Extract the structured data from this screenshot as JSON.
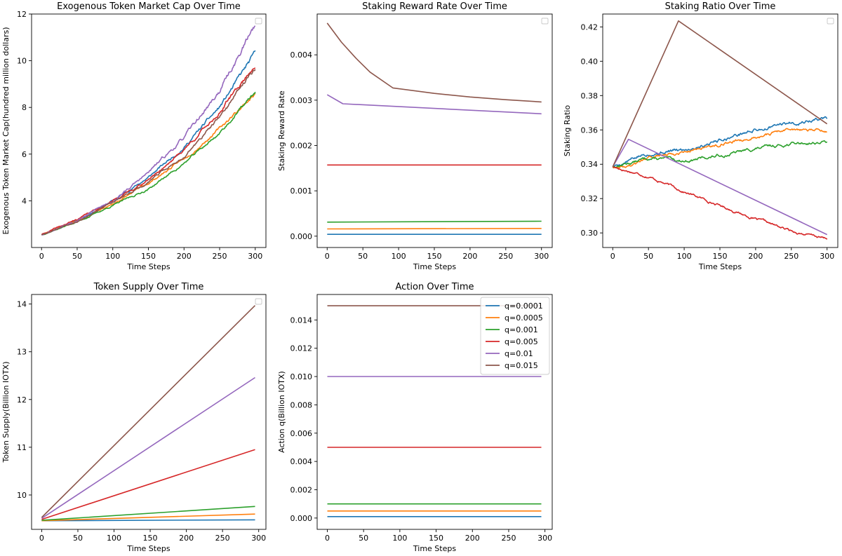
{
  "colors": {
    "q=0.0001": "#1f77b4",
    "q=0.0005": "#ff7f0e",
    "q=0.001": "#2ca02c",
    "q=0.005": "#d62728",
    "q=0.01": "#9467bd",
    "q=0.015": "#8c564b"
  },
  "legend_labels": [
    "q=0.0001",
    "q=0.0005",
    "q=0.001",
    "q=0.005",
    "q=0.01",
    "q=0.015"
  ],
  "chart_data": [
    {
      "id": "market-cap",
      "type": "line",
      "title": "Exogenous Token Market Cap Over Time",
      "xlabel": "Time Steps",
      "ylabel": "Exogenous Token Market Cap(hundred million dollars)",
      "xlim": [
        -14,
        315
      ],
      "ylim": [
        2.0,
        12.0
      ],
      "xticks": [
        0,
        50,
        100,
        150,
        200,
        250,
        300
      ],
      "yticks": [
        4,
        6,
        8,
        10,
        12
      ],
      "legend": "empty-top-right",
      "series": [
        {
          "name": "q=0.0001",
          "noise": 0.035,
          "seed": 11,
          "x": [
            0,
            50,
            100,
            150,
            200,
            250,
            300
          ],
          "y": [
            2.55,
            3.15,
            4.0,
            5.0,
            6.3,
            8.0,
            10.3
          ]
        },
        {
          "name": "q=0.0005",
          "noise": 0.03,
          "seed": 23,
          "x": [
            0,
            50,
            100,
            150,
            200,
            250,
            300
          ],
          "y": [
            2.55,
            3.15,
            3.85,
            4.75,
            5.8,
            7.1,
            8.6
          ]
        },
        {
          "name": "q=0.001",
          "noise": 0.03,
          "seed": 37,
          "x": [
            0,
            50,
            100,
            150,
            200,
            250,
            300
          ],
          "y": [
            2.55,
            3.1,
            3.8,
            4.5,
            5.6,
            6.9,
            8.65
          ]
        },
        {
          "name": "q=0.005",
          "noise": 0.035,
          "seed": 41,
          "x": [
            0,
            50,
            100,
            150,
            200,
            250,
            300
          ],
          "y": [
            2.55,
            3.2,
            4.0,
            4.9,
            6.2,
            7.8,
            9.85
          ]
        },
        {
          "name": "q=0.01",
          "noise": 0.04,
          "seed": 53,
          "x": [
            0,
            50,
            100,
            150,
            200,
            250,
            300
          ],
          "y": [
            2.55,
            3.2,
            4.0,
            5.2,
            6.7,
            8.7,
            11.55
          ]
        },
        {
          "name": "q=0.015",
          "noise": 0.035,
          "seed": 67,
          "x": [
            0,
            50,
            100,
            150,
            200,
            250,
            300
          ],
          "y": [
            2.55,
            3.15,
            3.9,
            4.8,
            5.9,
            7.55,
            9.75
          ]
        }
      ]
    },
    {
      "id": "reward-rate",
      "type": "line",
      "title": "Staking Reward Rate Over Time",
      "xlabel": "Time Steps",
      "ylabel": "Staking Reward Rate",
      "xlim": [
        -14,
        315
      ],
      "ylim": [
        -0.00025,
        0.0049
      ],
      "xticks": [
        0,
        50,
        100,
        150,
        200,
        250,
        300
      ],
      "yticks": [
        0.0,
        0.001,
        0.002,
        0.003,
        0.004
      ],
      "ytick_labels": [
        "0.000",
        "0.001",
        "0.002",
        "0.003",
        "0.004"
      ],
      "legend": "empty-top-right",
      "series": [
        {
          "name": "q=0.0001",
          "x": [
            0,
            300
          ],
          "y": [
            4e-05,
            4e-05
          ]
        },
        {
          "name": "q=0.0005",
          "x": [
            0,
            300
          ],
          "y": [
            0.00016,
            0.00017
          ]
        },
        {
          "name": "q=0.001",
          "x": [
            0,
            300
          ],
          "y": [
            0.00031,
            0.00033
          ]
        },
        {
          "name": "q=0.005",
          "x": [
            0,
            100,
            200,
            300
          ],
          "y": [
            0.00157,
            0.00157,
            0.00157,
            0.00157
          ]
        },
        {
          "name": "q=0.01",
          "x": [
            0,
            22,
            300
          ],
          "y": [
            0.00312,
            0.00292,
            0.0027
          ]
        },
        {
          "name": "q=0.015",
          "x": [
            0,
            20,
            40,
            60,
            92,
            150,
            200,
            250,
            300
          ],
          "y": [
            0.0047,
            0.00428,
            0.00393,
            0.00362,
            0.00327,
            0.00315,
            0.00307,
            0.00301,
            0.00296
          ]
        }
      ]
    },
    {
      "id": "staking-ratio",
      "type": "line",
      "title": "Staking Ratio Over Time",
      "xlabel": "Time Steps",
      "ylabel": "Staking Ratio",
      "xlim": [
        -14,
        315
      ],
      "ylim": [
        0.2915,
        0.4275
      ],
      "xticks": [
        0,
        50,
        100,
        150,
        200,
        250,
        300
      ],
      "yticks": [
        0.3,
        0.32,
        0.34,
        0.36,
        0.38,
        0.4,
        0.42
      ],
      "ytick_labels": [
        "0.30",
        "0.32",
        "0.34",
        "0.36",
        "0.38",
        "0.40",
        "0.42"
      ],
      "legend": "empty-top-right",
      "series": [
        {
          "name": "q=0.0001",
          "noise": 0.0006,
          "seed": 5,
          "x": [
            0,
            50,
            100,
            150,
            200,
            250,
            300
          ],
          "y": [
            0.3385,
            0.3465,
            0.3485,
            0.3545,
            0.36,
            0.364,
            0.367
          ]
        },
        {
          "name": "q=0.0005",
          "noise": 0.0005,
          "seed": 9,
          "x": [
            0,
            25,
            50,
            100,
            150,
            200,
            250,
            300
          ],
          "y": [
            0.3385,
            0.3395,
            0.3435,
            0.3475,
            0.352,
            0.356,
            0.3605,
            0.3595
          ]
        },
        {
          "name": "q=0.001",
          "noise": 0.0005,
          "seed": 13,
          "x": [
            0,
            50,
            100,
            150,
            200,
            250,
            300
          ],
          "y": [
            0.3385,
            0.3435,
            0.342,
            0.345,
            0.349,
            0.352,
            0.353
          ]
        },
        {
          "name": "q=0.005",
          "noise": 0.0004,
          "seed": 17,
          "x": [
            0,
            50,
            100,
            150,
            200,
            250,
            300
          ],
          "y": [
            0.3385,
            0.333,
            0.324,
            0.316,
            0.308,
            0.301,
            0.2965
          ]
        },
        {
          "name": "q=0.01",
          "x": [
            0,
            22,
            300
          ],
          "y": [
            0.3385,
            0.3545,
            0.299
          ]
        },
        {
          "name": "q=0.015",
          "x": [
            0,
            92,
            300
          ],
          "y": [
            0.3385,
            0.4235,
            0.3635
          ]
        }
      ]
    },
    {
      "id": "token-supply",
      "type": "line",
      "title": "Token Supply Over Time",
      "xlabel": "Time Steps",
      "ylabel": "Token Supply(Billion IOTX)",
      "xlim": [
        -14,
        310
      ],
      "ylim": [
        9.28,
        14.2
      ],
      "xticks": [
        0,
        50,
        100,
        150,
        200,
        250,
        300
      ],
      "yticks": [
        10,
        11,
        12,
        13,
        14
      ],
      "legend": "empty-top-right",
      "series": [
        {
          "name": "q=0.0001",
          "x": [
            0,
            295
          ],
          "y": [
            9.46,
            9.48
          ]
        },
        {
          "name": "q=0.0005",
          "x": [
            0,
            295
          ],
          "y": [
            9.46,
            9.6
          ]
        },
        {
          "name": "q=0.001",
          "x": [
            0,
            295
          ],
          "y": [
            9.47,
            9.76
          ]
        },
        {
          "name": "q=0.005",
          "x": [
            0,
            295
          ],
          "y": [
            9.49,
            10.95
          ]
        },
        {
          "name": "q=0.01",
          "x": [
            0,
            295
          ],
          "y": [
            9.51,
            12.46
          ]
        },
        {
          "name": "q=0.015",
          "x": [
            0,
            295
          ],
          "y": [
            9.53,
            13.97
          ]
        }
      ]
    },
    {
      "id": "action",
      "type": "line",
      "title": "Action Over Time",
      "xlabel": "Time Steps",
      "ylabel": "Action q(Billion IOTX)",
      "xlim": [
        -14,
        310
      ],
      "ylim": [
        -0.0008,
        0.0158
      ],
      "xticks": [
        0,
        50,
        100,
        150,
        200,
        250,
        300
      ],
      "yticks": [
        0.0,
        0.002,
        0.004,
        0.006,
        0.008,
        0.01,
        0.012,
        0.014
      ],
      "ytick_labels": [
        "0.000",
        "0.002",
        "0.004",
        "0.006",
        "0.008",
        "0.010",
        "0.012",
        "0.014"
      ],
      "legend": "top-right",
      "series": [
        {
          "name": "q=0.0001",
          "x": [
            0,
            295
          ],
          "y": [
            0.0001,
            0.0001
          ]
        },
        {
          "name": "q=0.0005",
          "x": [
            0,
            295
          ],
          "y": [
            0.0005,
            0.0005
          ]
        },
        {
          "name": "q=0.001",
          "x": [
            0,
            295
          ],
          "y": [
            0.001,
            0.001
          ]
        },
        {
          "name": "q=0.005",
          "x": [
            0,
            295
          ],
          "y": [
            0.005,
            0.005
          ]
        },
        {
          "name": "q=0.01",
          "x": [
            0,
            295
          ],
          "y": [
            0.01,
            0.01
          ]
        },
        {
          "name": "q=0.015",
          "x": [
            0,
            295
          ],
          "y": [
            0.015,
            0.015
          ]
        }
      ]
    }
  ]
}
